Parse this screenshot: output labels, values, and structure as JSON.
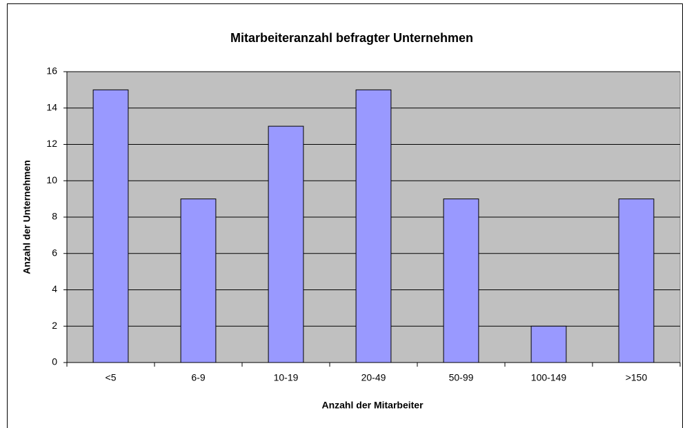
{
  "chart_data": {
    "type": "bar",
    "title": "Mitarbeiteranzahl befragter Unternehmen",
    "x_label": "Anzahl der Mitarbeiter",
    "y_label": "Anzahl der Unternehmen",
    "categories": [
      "<5",
      "6-9",
      "10-19",
      "20-49",
      "50-99",
      "100-149",
      ">150"
    ],
    "values": [
      15,
      9,
      13,
      15,
      9,
      2,
      9
    ],
    "color": "#9999ff",
    "ylim": [
      0,
      16
    ],
    "yticks": [
      0,
      2,
      4,
      6,
      8,
      10,
      12,
      14,
      16
    ],
    "grid": true
  }
}
